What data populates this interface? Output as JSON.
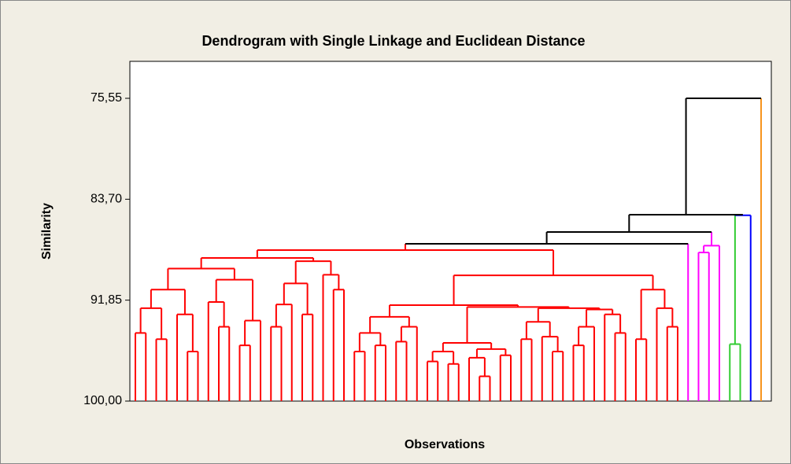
{
  "chart_data": {
    "type": "dendrogram",
    "title": "Dendrogram with Single Linkage and Euclidean Distance",
    "x_label": "Observations",
    "y_label": "Similarity",
    "ylim": [
      100,
      75.55
    ],
    "yticks": [
      {
        "value": 75.55,
        "label": "75,55"
      },
      {
        "value": 83.7,
        "label": "83,70"
      },
      {
        "value": 91.85,
        "label": "91,85"
      },
      {
        "value": 100,
        "label": "100,00"
      }
    ],
    "tree": [
      75.55,
      [
        84.95,
        [
          86.35,
          [
            87.3,
            [
              87.81,
              [
                88.44,
                [
                  89.3,
                  [
                    91.0,
                    [
                      92.5,
                      [
                        94.5,
                        [],
                        []
                      ],
                      [
                        95.0,
                        [],
                        []
                      ]
                    ],
                    [
                      93.0,
                      [],
                      [
                        96.0,
                        [],
                        []
                      ]
                    ]
                  ],
                  [
                    90.2,
                    [
                      92.0,
                      [],
                      [
                        94.0,
                        [],
                        []
                      ]
                    ],
                    [
                      93.5,
                      [
                        95.5,
                        [],
                        []
                      ],
                      []
                    ]
                  ]
                ],
                [
                  88.7,
                  [
                    90.5,
                    [
                      92.2,
                      [
                        94.0,
                        [],
                        []
                      ],
                      []
                    ],
                    [
                      93.0,
                      [],
                      []
                    ]
                  ],
                  [
                    89.8,
                    [],
                    [
                      91.0,
                      [],
                      []
                    ]
                  ]
                ]
              ],
              [
                89.85,
                [
                  92.25,
                  [
                    93.2,
                    [
                      94.5,
                      [
                        96.0,
                        [],
                        []
                      ],
                      [
                        95.5,
                        [],
                        []
                      ]
                    ],
                    [
                      94.0,
                      [
                        95.2,
                        [],
                        []
                      ],
                      []
                    ]
                  ],
                  [
                    92.4,
                    [
                      95.3,
                      [
                        96.0,
                        [
                          96.8,
                          [],
                          []
                        ],
                        [
                          97.0,
                          [],
                          []
                        ]
                      ],
                      [
                        95.8,
                        [
                          96.5,
                          [],
                          [
                            98.0,
                            [],
                            []
                          ]
                        ],
                        [
                          96.3,
                          [],
                          []
                        ]
                      ]
                    ],
                    [
                      92.5,
                      [
                        93.6,
                        [
                          95.0,
                          [],
                          []
                        ],
                        [
                          94.8,
                          [],
                          [
                            96.0,
                            [],
                            []
                          ]
                        ]
                      ],
                      [
                        92.6,
                        [
                          94.0,
                          [
                            95.5,
                            [],
                            []
                          ],
                          []
                        ],
                        [
                          93.0,
                          [],
                          [
                            94.5,
                            [],
                            []
                          ]
                        ]
                      ]
                    ]
                  ]
                ],
                [
                  91.0,
                  [
                    95.0,
                    [],
                    []
                  ],
                  [
                    92.5,
                    [],
                    [
                      94.0,
                      [],
                      []
                    ]
                  ]
                ]
              ],
              "#ff0000"
            ],
            [
              "#ff00ff"
            ]
          ],
          [
            87.45,
            [
              88.0,
              [],
              [],
              "#ff00ff"
            ],
            [],
            "#ff00ff"
          ]
        ],
        [
          85.0,
          [
            95.4,
            [],
            [],
            "#33cc33"
          ],
          [
            "#0000ff"
          ],
          "#0000ff"
        ]
      ],
      [
        "#f7941d"
      ],
      "#000000"
    ]
  }
}
